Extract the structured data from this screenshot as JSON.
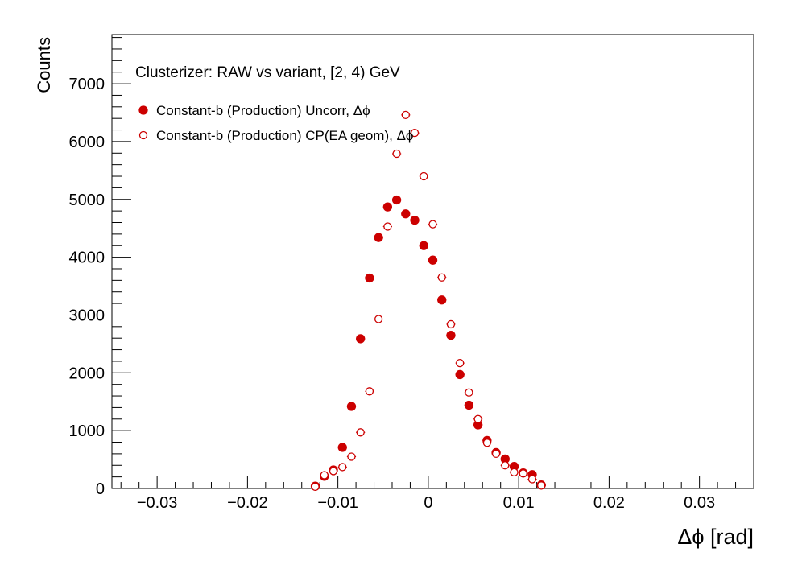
{
  "chart_data": {
    "type": "scatter",
    "title": "Clusterizer: RAW vs variant, [2, 4) GeV",
    "xlabel": "Δϕ  [rad]",
    "ylabel": "Counts",
    "xlim": [
      -0.035,
      0.036
    ],
    "ylim": [
      0,
      7850
    ],
    "x_ticks": [
      -0.03,
      -0.02,
      -0.01,
      0,
      0.01,
      0.02,
      0.03
    ],
    "x_tick_labels": [
      "−0.03",
      "−0.02",
      "−0.01",
      "0",
      "0.01",
      "0.02",
      "0.03"
    ],
    "y_ticks": [
      0,
      1000,
      2000,
      3000,
      4000,
      5000,
      6000,
      7000
    ],
    "y_tick_labels": [
      "0",
      "1000",
      "2000",
      "3000",
      "4000",
      "5000",
      "6000",
      "7000"
    ],
    "grid": false,
    "legend_placement": "top-left",
    "colors": {
      "series": "#cc0000",
      "axis": "#000000",
      "background": "#ffffff"
    },
    "series": [
      {
        "name": "Constant-b (Production) Uncorr, Δϕ",
        "marker": "filled-circle",
        "x": [
          -0.0125,
          -0.0115,
          -0.0105,
          -0.0095,
          -0.0085,
          -0.0075,
          -0.0065,
          -0.0055,
          -0.0045,
          -0.0035,
          -0.0025,
          -0.0015,
          -0.0005,
          0.0005,
          0.0015,
          0.0025,
          0.0035,
          0.0045,
          0.0055,
          0.0065,
          0.0075,
          0.0085,
          0.0095,
          0.0105,
          0.0115,
          0.0125
        ],
        "y": [
          40,
          210,
          320,
          710,
          1420,
          2590,
          3640,
          4340,
          4870,
          4990,
          4750,
          4640,
          4200,
          3950,
          3260,
          2650,
          1970,
          1440,
          1100,
          830,
          620,
          510,
          380,
          270,
          240,
          60
        ]
      },
      {
        "name": "Constant-b (Production) CP(EA geom), Δϕ",
        "marker": "open-circle",
        "x": [
          -0.0125,
          -0.0115,
          -0.0105,
          -0.0095,
          -0.0085,
          -0.0075,
          -0.0065,
          -0.0055,
          -0.0045,
          -0.0035,
          -0.0025,
          -0.0015,
          -0.0005,
          0.0005,
          0.0015,
          0.0025,
          0.0035,
          0.0045,
          0.0055,
          0.0065,
          0.0075,
          0.0085,
          0.0095,
          0.0105,
          0.0115,
          0.0125
        ],
        "y": [
          30,
          230,
          300,
          370,
          550,
          970,
          1680,
          2930,
          4530,
          5790,
          6460,
          6150,
          5400,
          4570,
          3650,
          2840,
          2170,
          1660,
          1200,
          790,
          600,
          400,
          280,
          260,
          160,
          50
        ]
      }
    ]
  }
}
